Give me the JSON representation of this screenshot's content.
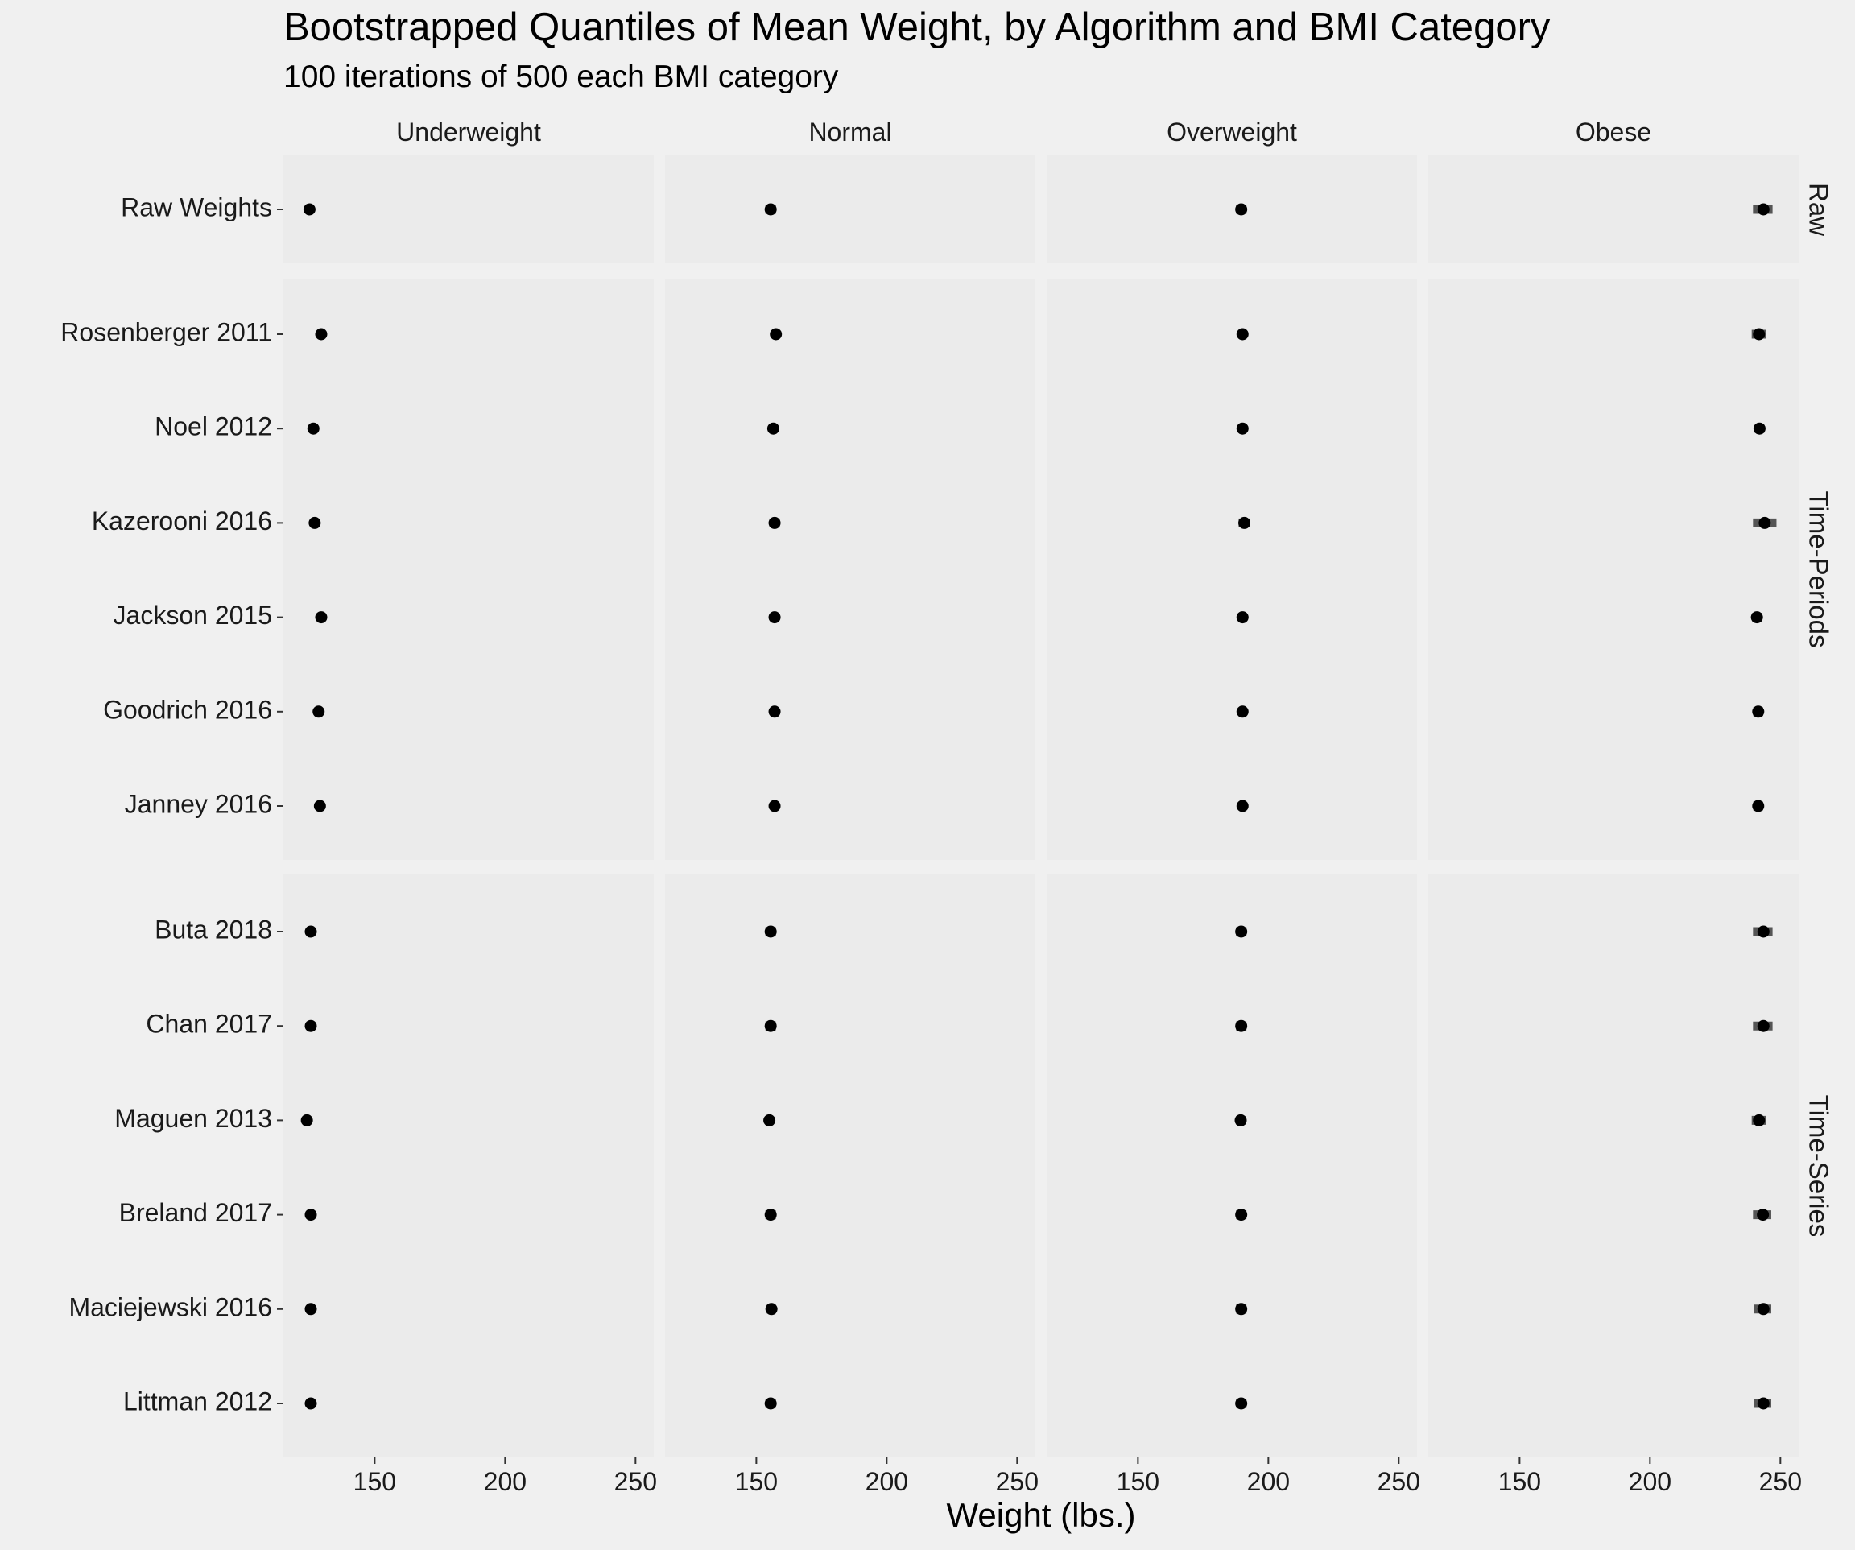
{
  "chart_data": {
    "type": "scatter",
    "title": "Bootstrapped Quantiles of Mean Weight, by Algorithm and BMI Category",
    "subtitle": "100 iterations of 500 each BMI category",
    "xlabel": "Weight (lbs.)",
    "ylabel": "",
    "xlim": [
      115,
      257
    ],
    "xticks": [
      150,
      200,
      250
    ],
    "grid": false,
    "legend": "none",
    "colors": {
      "background": "#f0f0f0",
      "panel": "#ebebeb",
      "point": "#000000",
      "interval": "#555555",
      "text": "#000000",
      "tick_text": "#1a1a1a"
    },
    "columns": [
      "Underweight",
      "Normal",
      "Overweight",
      "Obese"
    ],
    "row_groups": [
      {
        "name": "Raw",
        "algorithms": [
          "Raw Weights"
        ]
      },
      {
        "name": "Time-Periods",
        "algorithms": [
          "Rosenberger 2011",
          "Noel 2012",
          "Kazerooni 2016",
          "Jackson 2015",
          "Goodrich 2016",
          "Janney 2016"
        ]
      },
      {
        "name": "Time-Series",
        "algorithms": [
          "Buta 2018",
          "Chan 2017",
          "Maguen 2013",
          "Breland 2017",
          "Maciejewski 2016",
          "Littman 2012"
        ]
      }
    ],
    "series": [
      {
        "algorithm": "Raw Weights",
        "mean": [
          125.0,
          155.5,
          189.6,
          243.5
        ],
        "lo": [
          123.5,
          153.5,
          187.6,
          239.5
        ],
        "hi": [
          126.5,
          157.5,
          191.6,
          247.0
        ]
      },
      {
        "algorithm": "Rosenberger 2011",
        "mean": [
          129.5,
          157.5,
          190.1,
          241.8
        ],
        "lo": [
          128.0,
          156.3,
          189.2,
          239.0
        ],
        "hi": [
          131.0,
          158.7,
          191.0,
          244.5
        ]
      },
      {
        "algorithm": "Noel 2012",
        "mean": [
          126.5,
          156.5,
          190.1,
          242.0
        ],
        "lo": [
          125.7,
          155.7,
          189.4,
          240.2
        ],
        "hi": [
          127.3,
          157.3,
          190.8,
          243.8
        ]
      },
      {
        "algorithm": "Kazerooni 2016",
        "mean": [
          127.0,
          157.0,
          190.8,
          244.0
        ],
        "lo": [
          125.3,
          155.0,
          188.6,
          239.5
        ],
        "hi": [
          128.7,
          159.0,
          193.0,
          248.5
        ]
      },
      {
        "algorithm": "Jackson 2015",
        "mean": [
          129.5,
          157.0,
          190.1,
          241.0
        ],
        "lo": [
          128.0,
          156.2,
          189.4,
          239.2
        ],
        "hi": [
          131.0,
          157.8,
          190.8,
          242.8
        ]
      },
      {
        "algorithm": "Goodrich 2016",
        "mean": [
          128.5,
          157.0,
          190.1,
          241.5
        ],
        "lo": [
          127.3,
          156.2,
          189.4,
          239.6
        ],
        "hi": [
          129.7,
          157.8,
          190.8,
          243.4
        ]
      },
      {
        "algorithm": "Janney 2016",
        "mean": [
          129.0,
          157.0,
          190.1,
          241.5
        ],
        "lo": [
          127.8,
          156.2,
          189.4,
          239.6
        ],
        "hi": [
          130.2,
          157.8,
          190.8,
          243.4
        ]
      },
      {
        "algorithm": "Buta 2018",
        "mean": [
          125.5,
          155.5,
          189.6,
          243.5
        ],
        "lo": [
          124.3,
          153.5,
          187.6,
          239.5
        ],
        "hi": [
          126.7,
          157.5,
          191.6,
          247.0
        ]
      },
      {
        "algorithm": "Chan 2017",
        "mean": [
          125.5,
          155.5,
          189.6,
          243.5
        ],
        "lo": [
          124.3,
          153.5,
          187.6,
          239.5
        ],
        "hi": [
          126.7,
          157.5,
          191.6,
          247.0
        ]
      },
      {
        "algorithm": "Maguen 2013",
        "mean": [
          124.0,
          155.0,
          189.4,
          241.8
        ],
        "lo": [
          122.8,
          153.5,
          187.6,
          239.0
        ],
        "hi": [
          125.2,
          156.5,
          191.2,
          244.5
        ]
      },
      {
        "algorithm": "Breland 2017",
        "mean": [
          125.5,
          155.5,
          189.6,
          243.3
        ],
        "lo": [
          124.3,
          153.5,
          187.6,
          239.5
        ],
        "hi": [
          126.7,
          157.5,
          191.6,
          246.5
        ]
      },
      {
        "algorithm": "Maciejewski 2016",
        "mean": [
          125.5,
          155.8,
          189.6,
          243.5
        ],
        "lo": [
          124.3,
          154.0,
          187.6,
          240.0
        ],
        "hi": [
          126.7,
          157.5,
          191.6,
          246.5
        ]
      },
      {
        "algorithm": "Littman 2012",
        "mean": [
          125.5,
          155.5,
          189.6,
          243.5
        ],
        "lo": [
          124.3,
          153.5,
          187.6,
          240.0
        ],
        "hi": [
          126.7,
          157.5,
          191.6,
          246.5
        ]
      }
    ]
  }
}
